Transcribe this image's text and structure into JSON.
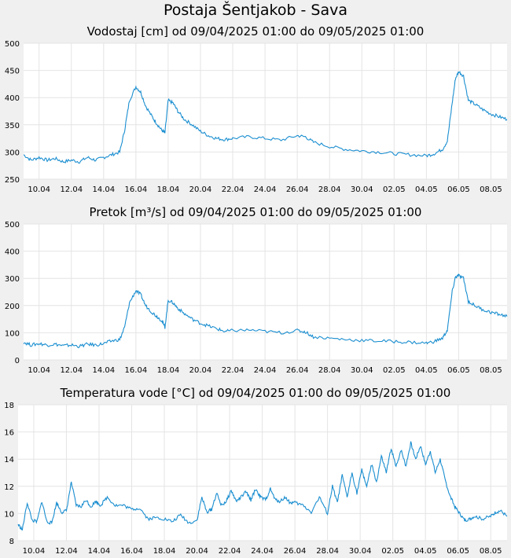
{
  "page": {
    "title": "Postaja Šentjakob - Sava"
  },
  "chart_data": [
    {
      "type": "line",
      "title": "Vodostaj [cm] od 09/04/2025 01:00 do 09/05/2025 01:00",
      "xlabel": "",
      "ylabel": "",
      "ylim": [
        250,
        500
      ],
      "yticks": [
        250,
        300,
        350,
        400,
        450,
        500
      ],
      "x_range_days": [
        9.04,
        39.0
      ],
      "xticks": [
        {
          "day": 10,
          "label": "10.04"
        },
        {
          "day": 12,
          "label": "12.04"
        },
        {
          "day": 14,
          "label": "14.04"
        },
        {
          "day": 16,
          "label": "16.04"
        },
        {
          "day": 18,
          "label": "18.04"
        },
        {
          "day": 20,
          "label": "20.04"
        },
        {
          "day": 22,
          "label": "22.04"
        },
        {
          "day": 24,
          "label": "24.04"
        },
        {
          "day": 26,
          "label": "26.04"
        },
        {
          "day": 28,
          "label": "28.04"
        },
        {
          "day": 30,
          "label": "30.04"
        },
        {
          "day": 32,
          "label": "02.05"
        },
        {
          "day": 34,
          "label": "04.05"
        },
        {
          "day": 36,
          "label": "06.05"
        },
        {
          "day": 38,
          "label": "08.05"
        }
      ],
      "grid": true,
      "color": "#1a8ed0",
      "x": [
        9.04,
        9.5,
        10,
        10.5,
        11,
        11.5,
        12,
        12.5,
        13,
        13.5,
        14,
        14.5,
        15,
        15.3,
        15.6,
        16,
        16.3,
        16.6,
        17,
        17.3,
        17.6,
        17.8,
        18,
        18.3,
        18.6,
        19,
        19.5,
        20,
        20.5,
        21,
        21.5,
        22,
        23,
        24,
        25,
        26,
        26.5,
        27,
        28,
        29,
        30,
        31,
        32,
        33,
        34,
        34.5,
        35,
        35.3,
        35.6,
        35.8,
        36,
        36.3,
        36.6,
        37,
        37.5,
        38,
        38.5,
        39.0
      ],
      "y": [
        295,
        285,
        290,
        285,
        288,
        282,
        285,
        282,
        290,
        285,
        290,
        295,
        300,
        340,
        395,
        420,
        410,
        385,
        365,
        352,
        340,
        335,
        395,
        390,
        375,
        360,
        350,
        338,
        330,
        325,
        323,
        325,
        328,
        325,
        322,
        330,
        328,
        318,
        310,
        305,
        302,
        300,
        297,
        295,
        293,
        297,
        305,
        320,
        390,
        435,
        448,
        440,
        395,
        388,
        378,
        370,
        365,
        360
      ]
    },
    {
      "type": "line",
      "title": "Pretok [m³/s] od 09/04/2025 01:00 do 09/05/2025 01:00",
      "xlabel": "",
      "ylabel": "",
      "ylim": [
        0,
        500
      ],
      "yticks": [
        0,
        100,
        200,
        300,
        400,
        500
      ],
      "x_range_days": [
        9.04,
        39.0
      ],
      "xticks": [
        {
          "day": 10,
          "label": "10.04"
        },
        {
          "day": 12,
          "label": "12.04"
        },
        {
          "day": 14,
          "label": "14.04"
        },
        {
          "day": 16,
          "label": "16.04"
        },
        {
          "day": 18,
          "label": "18.04"
        },
        {
          "day": 20,
          "label": "20.04"
        },
        {
          "day": 22,
          "label": "22.04"
        },
        {
          "day": 24,
          "label": "24.04"
        },
        {
          "day": 26,
          "label": "26.04"
        },
        {
          "day": 28,
          "label": "28.04"
        },
        {
          "day": 30,
          "label": "30.04"
        },
        {
          "day": 32,
          "label": "02.05"
        },
        {
          "day": 34,
          "label": "04.05"
        },
        {
          "day": 36,
          "label": "06.05"
        },
        {
          "day": 38,
          "label": "08.05"
        }
      ],
      "grid": true,
      "color": "#1a8ed0",
      "x": [
        9.04,
        9.5,
        10,
        10.5,
        11,
        11.5,
        12,
        12.5,
        13,
        13.5,
        14,
        14.5,
        15,
        15.3,
        15.6,
        16,
        16.3,
        16.6,
        17,
        17.3,
        17.6,
        17.8,
        18,
        18.3,
        18.6,
        19,
        19.5,
        20,
        20.5,
        21,
        21.5,
        22,
        23,
        24,
        25,
        26,
        26.5,
        27,
        28,
        29,
        30,
        31,
        32,
        33,
        34,
        34.5,
        35,
        35.3,
        35.6,
        35.8,
        36,
        36.3,
        36.6,
        37,
        37.5,
        38,
        38.5,
        39.0
      ],
      "y": [
        65,
        55,
        60,
        55,
        58,
        52,
        55,
        50,
        58,
        55,
        60,
        70,
        75,
        120,
        210,
        255,
        240,
        200,
        175,
        160,
        145,
        120,
        220,
        210,
        190,
        170,
        150,
        135,
        125,
        115,
        105,
        108,
        110,
        105,
        100,
        108,
        103,
        85,
        80,
        75,
        72,
        70,
        68,
        65,
        62,
        68,
        80,
        110,
        250,
        305,
        310,
        300,
        215,
        200,
        185,
        175,
        168,
        160
      ]
    },
    {
      "type": "line",
      "title": "Temperatura vode [°C] od 09/04/2025 01:00 do 09/05/2025 01:00",
      "xlabel": "",
      "ylabel": "",
      "ylim": [
        8,
        18
      ],
      "yticks": [
        8,
        10,
        12,
        14,
        16,
        18
      ],
      "x_range_days": [
        9.04,
        39.0
      ],
      "xticks": [
        {
          "day": 10,
          "label": "10.04"
        },
        {
          "day": 12,
          "label": "12.04"
        },
        {
          "day": 14,
          "label": "14.04"
        },
        {
          "day": 16,
          "label": "16.04"
        },
        {
          "day": 18,
          "label": "18.04"
        },
        {
          "day": 20,
          "label": "20.04"
        },
        {
          "day": 22,
          "label": "22.04"
        },
        {
          "day": 24,
          "label": "24.04"
        },
        {
          "day": 26,
          "label": "26.04"
        },
        {
          "day": 28,
          "label": "28.04"
        },
        {
          "day": 30,
          "label": "30.04"
        },
        {
          "day": 32,
          "label": "02.05"
        },
        {
          "day": 34,
          "label": "04.05"
        },
        {
          "day": 36,
          "label": "06.05"
        },
        {
          "day": 38,
          "label": "08.05"
        }
      ],
      "grid": true,
      "color": "#1a8ed0",
      "x": [
        9.04,
        9.3,
        9.6,
        9.9,
        10.2,
        10.5,
        10.8,
        11.1,
        11.4,
        11.7,
        12.0,
        12.3,
        12.6,
        12.9,
        13.2,
        13.5,
        13.8,
        14.1,
        14.5,
        15,
        15.5,
        16,
        16.5,
        17,
        17.5,
        18,
        18.5,
        19,
        19.5,
        20,
        20.3,
        20.6,
        20.9,
        21.2,
        21.5,
        21.8,
        22.1,
        22.4,
        22.7,
        23,
        23.3,
        23.6,
        23.9,
        24.2,
        24.5,
        24.8,
        25.1,
        25.4,
        25.7,
        26,
        26.5,
        27,
        27.5,
        28,
        28.3,
        28.6,
        28.9,
        29.2,
        29.5,
        29.8,
        30.1,
        30.4,
        30.7,
        31,
        31.3,
        31.6,
        31.9,
        32.2,
        32.5,
        32.8,
        33.1,
        33.4,
        33.7,
        34,
        34.3,
        34.6,
        34.9,
        35.2,
        35.5,
        35.8,
        36.1,
        36.4,
        36.7,
        37,
        37.5,
        38,
        38.3,
        38.6,
        39.0
      ],
      "y": [
        9.2,
        8.8,
        10.8,
        9.5,
        9.4,
        10.9,
        9.4,
        9.3,
        10.8,
        10.1,
        10.2,
        12.3,
        10.6,
        10.5,
        11.0,
        10.5,
        10.9,
        10.6,
        11.2,
        10.6,
        10.6,
        10.3,
        10.4,
        9.6,
        9.7,
        9.6,
        9.4,
        9.9,
        9.3,
        9.5,
        11.2,
        10.1,
        10.3,
        11.5,
        10.6,
        10.9,
        11.7,
        10.9,
        11.2,
        11.6,
        11.0,
        11.8,
        11.2,
        11.0,
        11.8,
        11.0,
        10.9,
        11.2,
        10.8,
        10.8,
        10.6,
        10.1,
        11.2,
        10.0,
        12.0,
        10.8,
        12.8,
        11.2,
        13.0,
        11.5,
        13.2,
        12.0,
        13.6,
        12.3,
        14.2,
        13.0,
        14.8,
        13.4,
        14.7,
        13.5,
        15.2,
        14.0,
        15.0,
        13.6,
        14.6,
        13.0,
        14.0,
        12.5,
        11.3,
        10.5,
        10.0,
        9.5,
        9.6,
        9.8,
        9.6,
        9.8,
        10.1,
        10.2,
        9.8
      ]
    }
  ]
}
